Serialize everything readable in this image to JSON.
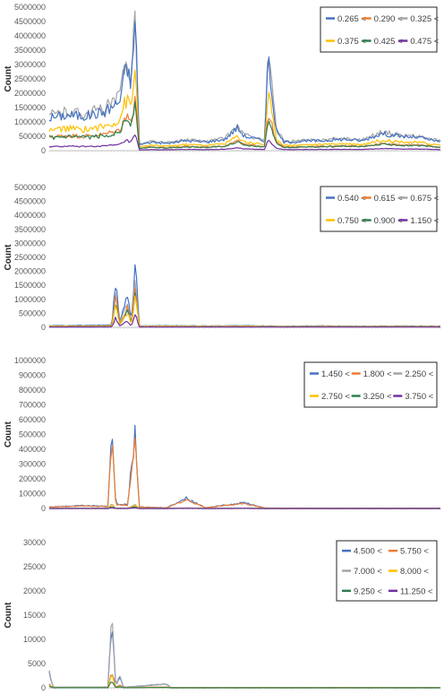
{
  "chart_data": [
    {
      "type": "line",
      "ylabel": "Count",
      "ylim": [
        0,
        5000000
      ],
      "yticks": [
        "0",
        "500000",
        "1000000",
        "1500000",
        "2000000",
        "2500000",
        "3000000",
        "3500000",
        "4000000",
        "4500000",
        "5000000"
      ],
      "legend_position": "top-right",
      "legend_columns": 3,
      "series": [
        {
          "name": "0.265 <",
          "color": "#4472C4",
          "profile": [
            0.95,
            1.25,
            0.0,
            1.3,
            0.35,
            2.1,
            0.8,
            2.5,
            1.3,
            1.55,
            0.0,
            1.4,
            0.1,
            1.45,
            0.5,
            5.0,
            0.0,
            0.1,
            0.0,
            0.1
          ],
          "spikes": [
            {
              "x": 0.33,
              "v": 2.35
            },
            {
              "x": 0.54,
              "v": 5.0
            },
            {
              "x": 0.76,
              "v": 1.65
            },
            {
              "x": 0.78,
              "v": 2.6
            }
          ]
        },
        {
          "name": "0.290 <",
          "color": "#ED7D31",
          "profile": [
            0.4,
            0.56,
            0.0,
            0.6,
            0.16,
            1.0,
            0.4,
            1.2,
            0.7,
            0.8,
            0.0,
            0.75,
            0.05,
            0.7,
            0.25,
            2.3,
            0.0,
            0.05,
            0.0,
            0.05
          ],
          "spikes": [
            {
              "x": 0.33,
              "v": 1.55
            },
            {
              "x": 0.54,
              "v": 2.0
            }
          ]
        },
        {
          "name": "0.325 <",
          "color": "#A5A5A5",
          "profile": [
            1.1,
            1.35,
            0.0,
            1.45,
            0.4,
            2.6,
            0.9,
            2.9,
            1.4,
            1.7,
            0.0,
            1.6,
            0.12,
            1.55,
            0.55,
            5.5,
            0.0,
            0.11,
            0.0,
            0.11
          ],
          "spikes": [
            {
              "x": 0.33,
              "v": 4.8
            },
            {
              "x": 0.54,
              "v": 7.0
            }
          ]
        },
        {
          "name": "0.375 <",
          "color": "#FFC000",
          "profile": [
            0.55,
            0.75,
            0.0,
            0.8,
            0.2,
            1.4,
            0.5,
            1.6,
            0.9,
            1.05,
            0.0,
            1.0,
            0.06,
            0.95,
            0.32,
            3.0,
            0.0,
            0.06,
            0.0,
            0.06
          ],
          "spikes": [
            {
              "x": 0.33,
              "v": 2.4
            },
            {
              "x": 0.54,
              "v": 2.7
            }
          ]
        },
        {
          "name": "0.425 <",
          "color": "#2E7D4F",
          "profile": [
            0.3,
            0.42,
            0.0,
            0.45,
            0.1,
            0.8,
            0.25,
            0.95,
            0.5,
            0.6,
            0.0,
            0.55,
            0.03,
            0.5,
            0.18,
            1.7,
            0.0,
            0.03,
            0.0,
            0.03
          ],
          "spikes": [
            {
              "x": 0.33,
              "v": 2.0
            },
            {
              "x": 0.54,
              "v": 2.2
            }
          ]
        },
        {
          "name": "0.475 <",
          "color": "#7030A0",
          "profile": [
            0.1,
            0.12,
            0.0,
            0.15,
            0.03,
            0.25,
            0.08,
            0.3,
            0.15,
            0.2,
            0.0,
            0.18,
            0.01,
            0.17,
            0.05,
            0.6,
            0.0,
            0.01,
            0.0,
            0.01
          ],
          "spikes": [
            {
              "x": 0.33,
              "v": 1.3
            },
            {
              "x": 0.54,
              "v": 1.2
            }
          ]
        }
      ],
      "baseline": [
        [
          0.0,
          1150000
        ],
        [
          0.05,
          1250000
        ],
        [
          0.09,
          1200000
        ],
        [
          0.14,
          1350000
        ],
        [
          0.18,
          1700000
        ],
        [
          0.19,
          2600000
        ],
        [
          0.2,
          2800000
        ],
        [
          0.21,
          2400000
        ],
        [
          0.22,
          4700000
        ],
        [
          0.23,
          200000
        ],
        [
          0.26,
          300000
        ],
        [
          0.3,
          250000
        ],
        [
          0.35,
          350000
        ],
        [
          0.4,
          300000
        ],
        [
          0.45,
          400000
        ],
        [
          0.48,
          800000
        ],
        [
          0.5,
          500000
        ],
        [
          0.55,
          350000
        ],
        [
          0.56,
          3200000
        ],
        [
          0.58,
          700000
        ],
        [
          0.6,
          300000
        ],
        [
          0.7,
          350000
        ],
        [
          0.75,
          400000
        ],
        [
          0.8,
          350000
        ],
        [
          0.85,
          600000
        ],
        [
          0.9,
          500000
        ],
        [
          0.95,
          450000
        ],
        [
          1.0,
          300000
        ]
      ],
      "scales": [
        1.0,
        0.42,
        1.08,
        0.62,
        0.38,
        0.12
      ]
    },
    {
      "type": "line",
      "ylabel": "Count",
      "ylim": [
        0,
        5000000
      ],
      "yticks": [
        "0",
        "500000",
        "1000000",
        "1500000",
        "2000000",
        "2500000",
        "3000000",
        "3500000",
        "4000000",
        "4500000",
        "5000000"
      ],
      "legend_position": "top-right",
      "legend_columns": 3,
      "series": [
        {
          "name": "0.540 <",
          "color": "#4472C4"
        },
        {
          "name": "0.615 <",
          "color": "#ED7D31"
        },
        {
          "name": "0.675 <",
          "color": "#A5A5A5"
        },
        {
          "name": "0.750 <",
          "color": "#FFC000"
        },
        {
          "name": "0.900 <",
          "color": "#2E7D4F"
        },
        {
          "name": "1.150 <",
          "color": "#7030A0"
        }
      ],
      "baseline": [
        [
          0.0,
          60000
        ],
        [
          0.1,
          70000
        ],
        [
          0.16,
          80000
        ],
        [
          0.17,
          1700000
        ],
        [
          0.18,
          200000
        ],
        [
          0.2,
          1100000
        ],
        [
          0.21,
          200000
        ],
        [
          0.22,
          2250000
        ],
        [
          0.23,
          50000
        ],
        [
          0.3,
          60000
        ],
        [
          0.4,
          50000
        ],
        [
          0.5,
          60000
        ],
        [
          0.6,
          40000
        ],
        [
          0.7,
          50000
        ],
        [
          0.8,
          40000
        ],
        [
          0.9,
          50000
        ],
        [
          1.0,
          40000
        ]
      ],
      "scales": [
        1.0,
        0.62,
        0.75,
        0.5,
        0.55,
        0.2
      ]
    },
    {
      "type": "line",
      "ylabel": "Count",
      "ylim": [
        0,
        1000000
      ],
      "yticks": [
        "0",
        "100000",
        "200000",
        "300000",
        "400000",
        "500000",
        "600000",
        "700000",
        "800000",
        "900000",
        "1000000"
      ],
      "legend_position": "top-right",
      "legend_columns": 3,
      "series": [
        {
          "name": "1.450 <",
          "color": "#4472C4"
        },
        {
          "name": "1.800 <",
          "color": "#ED7D31"
        },
        {
          "name": "2.250 <",
          "color": "#A5A5A5"
        },
        {
          "name": "2.750 <",
          "color": "#FFC000"
        },
        {
          "name": "3.250 <",
          "color": "#2E7D4F"
        },
        {
          "name": "3.750 <",
          "color": "#7030A0"
        }
      ],
      "baseline": [
        [
          0.0,
          10000
        ],
        [
          0.08,
          20000
        ],
        [
          0.15,
          15000
        ],
        [
          0.16,
          590000
        ],
        [
          0.17,
          30000
        ],
        [
          0.2,
          25000
        ],
        [
          0.22,
          510000
        ],
        [
          0.23,
          10000
        ],
        [
          0.3,
          5000
        ],
        [
          0.35,
          70000
        ],
        [
          0.4,
          5000
        ],
        [
          0.5,
          40000
        ],
        [
          0.55,
          3000
        ],
        [
          0.7,
          2000
        ],
        [
          0.85,
          2000
        ],
        [
          1.0,
          2000
        ]
      ],
      "scales": [
        1.0,
        0.85,
        0.05,
        0.04,
        0.02,
        0.01
      ]
    },
    {
      "type": "line",
      "ylabel": "Count",
      "ylim": [
        0,
        30000
      ],
      "yticks": [
        "0",
        "5000",
        "10000",
        "15000",
        "20000",
        "25000",
        "30000"
      ],
      "legend_position": "top-right",
      "legend_columns": 2,
      "series": [
        {
          "name": "4.500 <",
          "color": "#4472C4"
        },
        {
          "name": "5.750 <",
          "color": "#ED7D31"
        },
        {
          "name": "7.000 <",
          "color": "#A5A5A5"
        },
        {
          "name": "8.000 <",
          "color": "#FFC000"
        },
        {
          "name": "9.250 <",
          "color": "#2E7D4F"
        },
        {
          "name": "11.250 <",
          "color": "#7030A0"
        }
      ],
      "baseline": [
        [
          0.0,
          3200
        ],
        [
          0.01,
          100
        ],
        [
          0.15,
          150
        ],
        [
          0.16,
          15000
        ],
        [
          0.17,
          200
        ],
        [
          0.18,
          2500
        ],
        [
          0.19,
          100
        ],
        [
          0.3,
          800
        ],
        [
          0.31,
          50
        ],
        [
          0.5,
          50
        ],
        [
          0.7,
          50
        ],
        [
          1.0,
          50
        ]
      ],
      "scales": [
        1.0,
        0.2,
        1.0,
        0.18,
        0.1,
        0.22
      ]
    }
  ]
}
